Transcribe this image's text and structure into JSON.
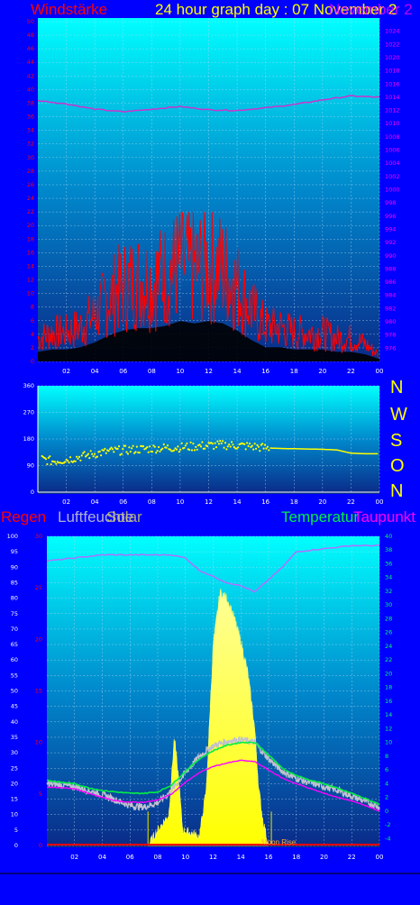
{
  "header": {
    "title": "24 hour graph day : 07 November 2",
    "wind_label": "Windstärke",
    "pressure_label": "November 2"
  },
  "compass": [
    "N",
    "W",
    "S",
    "O",
    "N"
  ],
  "lower_labels": {
    "rain": "Regen",
    "humidity": "Luftfeuchte",
    "sun": "Solar",
    "temperature": "Temperatur",
    "dewpoint": "Taupunkt",
    "moon": "Moon Rise"
  },
  "colors": {
    "background": "#0000ff",
    "wind": "#ff0000",
    "gust_fill": "#000000",
    "pressure": "#cc33cc",
    "direction": "#ffff00",
    "humidity": "#b070ff",
    "temperature": "#00ee44",
    "dewpoint": "#ff00ff",
    "outdoor": "#c0c0d0",
    "solar": "#ffff66",
    "rain": "#ff0000"
  },
  "chart_data": [
    {
      "type": "area",
      "x_ticks": [
        "02",
        "04",
        "06",
        "08",
        "10",
        "12",
        "14",
        "16",
        "18",
        "20",
        "22",
        "00"
      ],
      "y_left_ticks": [
        "0",
        "2",
        "4",
        "6",
        "8",
        "10",
        "12",
        "14",
        "16",
        "18",
        "20",
        "22",
        "24",
        "26",
        "28",
        "30",
        "32",
        "34",
        "36",
        "38",
        "40",
        "42",
        "44",
        "46",
        "48",
        "50"
      ],
      "y_left_range": [
        0,
        50
      ],
      "y_right_ticks": [
        "976",
        "978",
        "980",
        "982",
        "984",
        "986",
        "988",
        "990",
        "992",
        "994",
        "996",
        "998",
        "1000",
        "1002",
        "1004",
        "1006",
        "1008",
        "1010",
        "1012",
        "1014",
        "1016",
        "1018",
        "1020",
        "1022",
        "1024"
      ],
      "y_right_range": [
        974,
        1026
      ],
      "series": [
        {
          "name": "Windstärke",
          "x": [
            0,
            1,
            2,
            3,
            4,
            5,
            6,
            7,
            8,
            9,
            10,
            11,
            12,
            13,
            14,
            15,
            16,
            17,
            18,
            19,
            20,
            21,
            22,
            23,
            24
          ],
          "values": [
            4,
            5,
            5,
            6,
            8,
            11,
            13,
            14,
            14,
            15,
            17,
            16,
            17,
            16,
            13,
            9,
            6,
            6,
            5,
            5,
            5,
            4,
            4,
            3,
            1
          ]
        },
        {
          "name": "pressure",
          "x": [
            0,
            2,
            4,
            6,
            8,
            10,
            12,
            14,
            16,
            18,
            20,
            22,
            24
          ],
          "values": [
            1013.5,
            1013,
            1012.2,
            1011.8,
            1012.2,
            1012.6,
            1012.1,
            1012,
            1012.4,
            1012.9,
            1013.6,
            1014.2,
            1014
          ]
        }
      ]
    },
    {
      "type": "scatter",
      "x_ticks": [
        "02",
        "04",
        "06",
        "08",
        "10",
        "12",
        "14",
        "16",
        "18",
        "20",
        "22",
        "00"
      ],
      "y_ticks": [
        "0",
        "90",
        "180",
        "270",
        "360"
      ],
      "y_range": [
        0,
        360
      ],
      "series": [
        {
          "name": "direction",
          "x": [
            0,
            1,
            2,
            3,
            4,
            5,
            6,
            7,
            8,
            9,
            10,
            11,
            12,
            13,
            14,
            15,
            16,
            17,
            18,
            19,
            20,
            21,
            22,
            23,
            24
          ],
          "values": [
            115,
            105,
            110,
            120,
            130,
            138,
            142,
            145,
            148,
            150,
            152,
            155,
            158,
            160,
            158,
            155,
            150,
            148,
            147,
            146,
            145,
            143,
            132,
            130,
            130
          ]
        }
      ]
    },
    {
      "type": "line",
      "x_ticks": [
        "02",
        "04",
        "06",
        "08",
        "10",
        "12",
        "14",
        "16",
        "18",
        "20",
        "22",
        "00"
      ],
      "y_left_outer_ticks": [
        "0",
        "5",
        "10",
        "15",
        "20",
        "25",
        "30",
        "35",
        "40",
        "45",
        "50",
        "55",
        "60",
        "65",
        "70",
        "75",
        "80",
        "85",
        "90",
        "95",
        "100"
      ],
      "y_left_outer_range": [
        0,
        100
      ],
      "y_left_inner_ticks": [
        "0",
        "5",
        "10",
        "15",
        "20",
        "25",
        "30"
      ],
      "y_left_inner_range": [
        0,
        30
      ],
      "y_right_ticks": [
        "-4",
        "-2",
        "0",
        "2",
        "4",
        "6",
        "8",
        "10",
        "12",
        "14",
        "16",
        "18",
        "20",
        "22",
        "24",
        "26",
        "28",
        "30",
        "32",
        "34",
        "36",
        "38",
        "40"
      ],
      "y_right_range": [
        -5,
        40
      ],
      "series": [
        {
          "name": "Luftfeuchte",
          "x": [
            0,
            2,
            4,
            6,
            8,
            9,
            10,
            11,
            12,
            13,
            14,
            15,
            16,
            17,
            18,
            20,
            22,
            24
          ],
          "values": [
            92,
            93,
            94,
            94,
            94,
            94,
            93,
            89,
            87,
            85,
            84,
            82,
            86,
            90,
            95,
            96,
            97,
            97
          ]
        },
        {
          "name": "Temperatur",
          "x": [
            0,
            1,
            2,
            3,
            4,
            5,
            6,
            7,
            8,
            9,
            10,
            11,
            12,
            13,
            14,
            15,
            16,
            17,
            18,
            19,
            20,
            21,
            22,
            23,
            24
          ],
          "values": [
            4.5,
            4.2,
            4,
            3.4,
            3,
            2.8,
            2.6,
            2.6,
            2.8,
            3.8,
            5.8,
            7.6,
            8.8,
            9.6,
            10,
            10,
            8.2,
            6.2,
            5.2,
            4.5,
            4,
            3.3,
            2.6,
            1.8,
            1
          ]
        },
        {
          "name": "Taupunkt",
          "x": [
            0,
            1,
            2,
            3,
            4,
            5,
            6,
            7,
            8,
            9,
            10,
            11,
            12,
            13,
            14,
            15,
            16,
            17,
            18,
            19,
            20,
            21,
            22,
            23,
            24
          ],
          "values": [
            3.5,
            3.4,
            3.3,
            2.6,
            2,
            1.5,
            1.3,
            1.3,
            1.6,
            2.5,
            4.2,
            5.6,
            6.5,
            7,
            7.4,
            7.2,
            6,
            4.8,
            4,
            3.3,
            2.6,
            2,
            1.5,
            0.8,
            0
          ]
        },
        {
          "name": "outdoor",
          "x": [
            0,
            1,
            2,
            3,
            4,
            5,
            6,
            7,
            8,
            9,
            10,
            11,
            12,
            13,
            14,
            15,
            16,
            17,
            18,
            19,
            20,
            21,
            22,
            23,
            24
          ],
          "values": [
            4,
            3.8,
            3.6,
            3,
            2.4,
            1.6,
            0.8,
            0.6,
            1.2,
            3,
            5.6,
            8,
            9.5,
            10.2,
            10.4,
            10,
            7.6,
            5.8,
            4.8,
            4.1,
            3.6,
            3,
            2.2,
            1.4,
            0.6
          ]
        },
        {
          "name": "Solar",
          "x": [
            7.3,
            8,
            8.8,
            9.2,
            9.5,
            9.8,
            10.5,
            11,
            11.5,
            12,
            12.5,
            13,
            13.5,
            14,
            14.5,
            15,
            15.3,
            15.6,
            16
          ],
          "values": [
            0,
            5,
            10,
            35,
            22,
            5,
            4,
            3,
            18,
            65,
            82,
            80,
            74,
            66,
            56,
            38,
            18,
            8,
            0
          ]
        }
      ]
    }
  ]
}
